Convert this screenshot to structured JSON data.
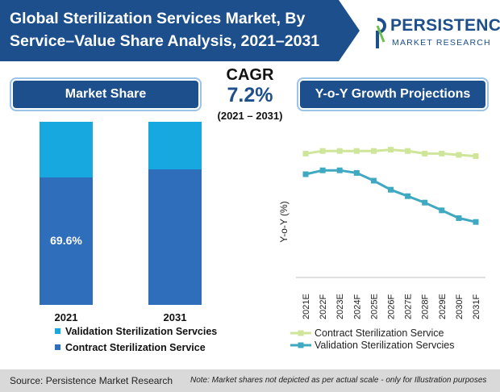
{
  "header": {
    "title": "Global Sterilization Services Market, By Service–Value Share Analysis, 2021–2031",
    "logo_name": "PERSISTENCE",
    "logo_sub": "MARKET RESEARCH"
  },
  "market_share": {
    "heading": "Market Share"
  },
  "cagr": {
    "label": "CAGR",
    "value": "7.2%",
    "range": "(2021 – 2031)"
  },
  "growth": {
    "heading": "Y-o-Y Growth Projections"
  },
  "footer": {
    "source": "Source: Persistence Market Research",
    "note": "Note: Market shares not depicted as per actual scale - only for Illustration purposes"
  },
  "colors": {
    "navy": "#1c4f8c",
    "contract_bar": "#2f6eba",
    "validation_bar": "#17a8df",
    "contract_line": "#cfe59a",
    "validation_line": "#3fa9c2"
  },
  "chart_data": [
    {
      "type": "bar",
      "stacked": true,
      "categories": [
        "2021",
        "2031"
      ],
      "series": [
        {
          "name": "Contract Sterilization Service",
          "values": [
            69.6,
            74
          ],
          "labels": [
            "69.6%",
            ""
          ]
        },
        {
          "name": "Validation Sterilization Servcies",
          "values": [
            30.4,
            26
          ],
          "labels": [
            "",
            ""
          ]
        }
      ],
      "legend": [
        "Validation Sterilization Servcies",
        "Contract Sterilization Service"
      ],
      "legend_placement": "bottom",
      "ylim": [
        0,
        100
      ],
      "grid": false
    },
    {
      "type": "line",
      "categories": [
        "2021E",
        "2022F",
        "2023E",
        "2024F",
        "2025E",
        "2026F",
        "2027E",
        "2028F",
        "2029E",
        "2030F",
        "2031F"
      ],
      "ylabel": "Y-o-Y (%)",
      "series": [
        {
          "name": "Contract Sterilization Service",
          "values": [
            8.1,
            8.3,
            8.3,
            8.3,
            8.3,
            8.4,
            8.3,
            8.1,
            8.1,
            8.0,
            7.9
          ]
        },
        {
          "name": "Validation Sterilization Servcies",
          "values": [
            6.5,
            6.8,
            6.8,
            6.6,
            6.0,
            5.3,
            4.8,
            4.3,
            3.7,
            3.1,
            2.8
          ]
        }
      ],
      "ylim": [
        0,
        10
      ],
      "legend_placement": "bottom",
      "grid": false
    }
  ]
}
